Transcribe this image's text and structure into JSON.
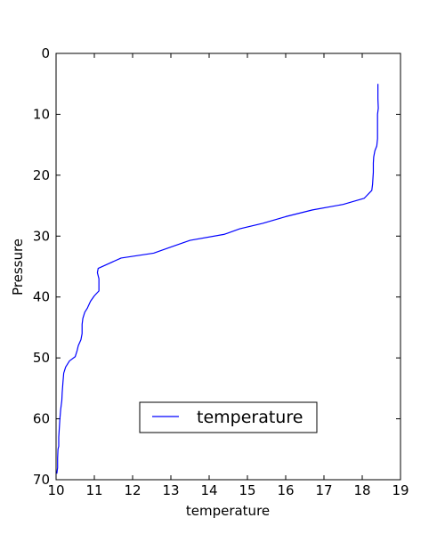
{
  "chart_data": {
    "type": "line",
    "xlabel": "temperature",
    "ylabel": "Pressure",
    "xlim": [
      10,
      19
    ],
    "ylim": [
      70,
      0
    ],
    "y_inverted": true,
    "x_ticks": [
      "10",
      "11",
      "12",
      "13",
      "14",
      "15",
      "16",
      "17",
      "18",
      "19"
    ],
    "y_ticks": [
      "0",
      "10",
      "20",
      "30",
      "40",
      "50",
      "60",
      "70"
    ],
    "grid": false,
    "legend": {
      "position": "lower center",
      "entries": [
        "temperature"
      ]
    },
    "series": [
      {
        "name": "temperature",
        "color": "#0000ff",
        "x": [
          18.41,
          18.41,
          18.42,
          18.4,
          18.4,
          18.4,
          18.38,
          18.33,
          18.3,
          18.29,
          18.29,
          18.28,
          18.27,
          18.25,
          18.05,
          17.5,
          16.7,
          16.0,
          15.4,
          14.8,
          14.4,
          13.5,
          13.0,
          12.55,
          11.7,
          11.1,
          11.08,
          11.12,
          11.12,
          11.0,
          10.9,
          10.82,
          10.75,
          10.7,
          10.68,
          10.68,
          10.65,
          10.58,
          10.55,
          10.5,
          10.35,
          10.25,
          10.2,
          10.18,
          10.16,
          10.15,
          10.12,
          10.1,
          10.08,
          10.07,
          10.07,
          10.05,
          10.04,
          10.04,
          10.02
        ],
        "y": [
          5.0,
          7.5,
          9.0,
          10.0,
          12.0,
          14.0,
          15.2,
          16.0,
          17.0,
          18.0,
          19.5,
          20.5,
          21.5,
          22.5,
          23.8,
          24.8,
          25.7,
          26.8,
          27.9,
          28.8,
          29.7,
          30.7,
          31.8,
          32.8,
          33.6,
          35.3,
          36.0,
          37.0,
          39.0,
          39.8,
          40.7,
          41.8,
          42.5,
          43.5,
          44.5,
          46.0,
          47.0,
          48.0,
          48.8,
          49.8,
          50.5,
          51.5,
          52.5,
          54.0,
          55.7,
          57.0,
          58.5,
          60.0,
          62.0,
          63.0,
          64.5,
          65.0,
          66.5,
          68.0,
          69.0
        ]
      }
    ]
  }
}
